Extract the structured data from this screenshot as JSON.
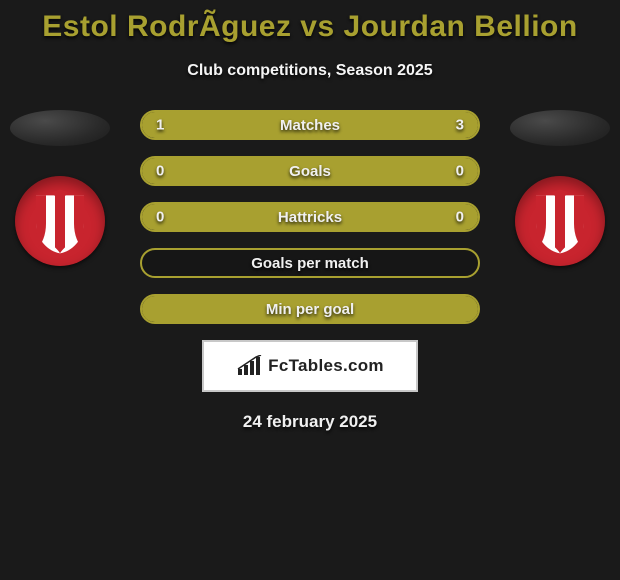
{
  "title": "Estol RodrÃ­guez vs Jourdan Bellion",
  "subtitle": "Club competitions, Season 2025",
  "colors": {
    "background": "#1a1a1a",
    "accent": "#a8a030",
    "text": "#f0f0f0",
    "badge_red": "#c8242e",
    "brand_border": "#c8c8c8",
    "brand_bg": "#ffffff"
  },
  "rows": [
    {
      "label": "Matches",
      "left_val": "1",
      "right_val": "3",
      "fill_left_pct": 25,
      "fill_right_pct": 75
    },
    {
      "label": "Goals",
      "left_val": "0",
      "right_val": "0",
      "fill_left_pct": 100,
      "fill_right_pct": 0
    },
    {
      "label": "Hattricks",
      "left_val": "0",
      "right_val": "0",
      "fill_left_pct": 100,
      "fill_right_pct": 0
    },
    {
      "label": "Goals per match",
      "left_val": "",
      "right_val": "",
      "fill_left_pct": 0,
      "fill_right_pct": 0
    },
    {
      "label": "Min per goal",
      "left_val": "",
      "right_val": "",
      "fill_left_pct": 100,
      "fill_right_pct": 0
    }
  ],
  "brand": {
    "text": "FcTables.com"
  },
  "date": "24 february 2025"
}
